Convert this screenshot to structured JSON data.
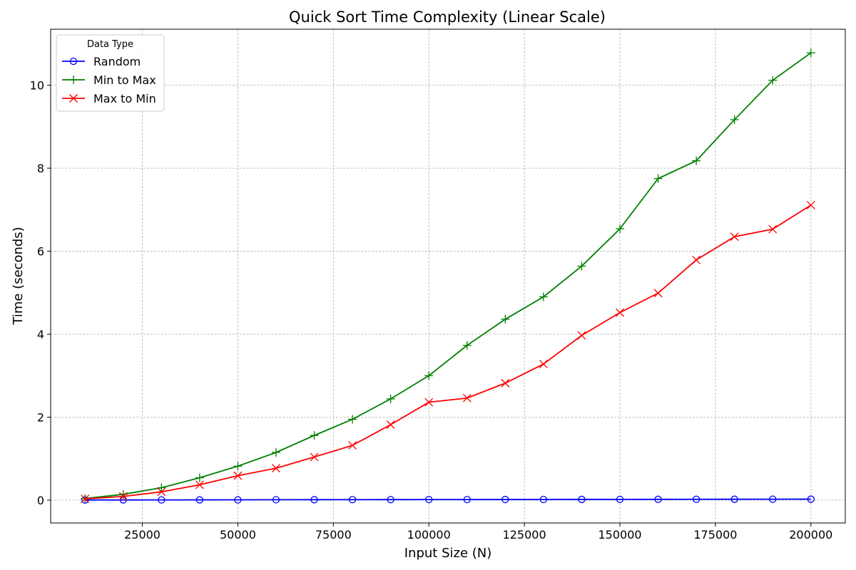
{
  "chart_data": {
    "type": "line",
    "title": "Quick Sort Time Complexity (Linear Scale)",
    "xlabel": "Input Size (N)",
    "ylabel": "Time (seconds)",
    "xlim": [
      1000,
      209000
    ],
    "ylim": [
      -0.55,
      11.35
    ],
    "x_ticks": [
      25000,
      50000,
      75000,
      100000,
      125000,
      150000,
      175000,
      200000
    ],
    "y_ticks": [
      0,
      2,
      4,
      6,
      8,
      10
    ],
    "grid": true,
    "legend": {
      "title": "Data Type",
      "position": "top-left"
    },
    "x": [
      10000,
      20000,
      30000,
      40000,
      50000,
      60000,
      70000,
      80000,
      90000,
      100000,
      110000,
      120000,
      130000,
      140000,
      150000,
      160000,
      170000,
      180000,
      190000,
      200000
    ],
    "series": [
      {
        "name": "Random",
        "color": "#0000ff",
        "marker": "circle",
        "values": [
          0.003,
          0.005,
          0.006,
          0.007,
          0.008,
          0.01,
          0.011,
          0.012,
          0.013,
          0.014,
          0.015,
          0.016,
          0.017,
          0.018,
          0.019,
          0.02,
          0.021,
          0.022,
          0.023,
          0.024
        ]
      },
      {
        "name": "Min to Max",
        "color": "#008000",
        "marker": "plus",
        "values": [
          0.04,
          0.14,
          0.3,
          0.54,
          0.82,
          1.15,
          1.56,
          1.95,
          2.44,
          3.0,
          3.73,
          4.36,
          4.9,
          5.64,
          6.54,
          7.75,
          8.18,
          9.17,
          10.12,
          10.78
        ]
      },
      {
        "name": "Max to Min",
        "color": "#ff0000",
        "marker": "x",
        "values": [
          0.03,
          0.09,
          0.2,
          0.37,
          0.59,
          0.77,
          1.04,
          1.32,
          1.82,
          2.36,
          2.46,
          2.82,
          3.28,
          3.97,
          4.52,
          4.99,
          5.79,
          6.35,
          6.53,
          7.11
        ]
      }
    ]
  }
}
